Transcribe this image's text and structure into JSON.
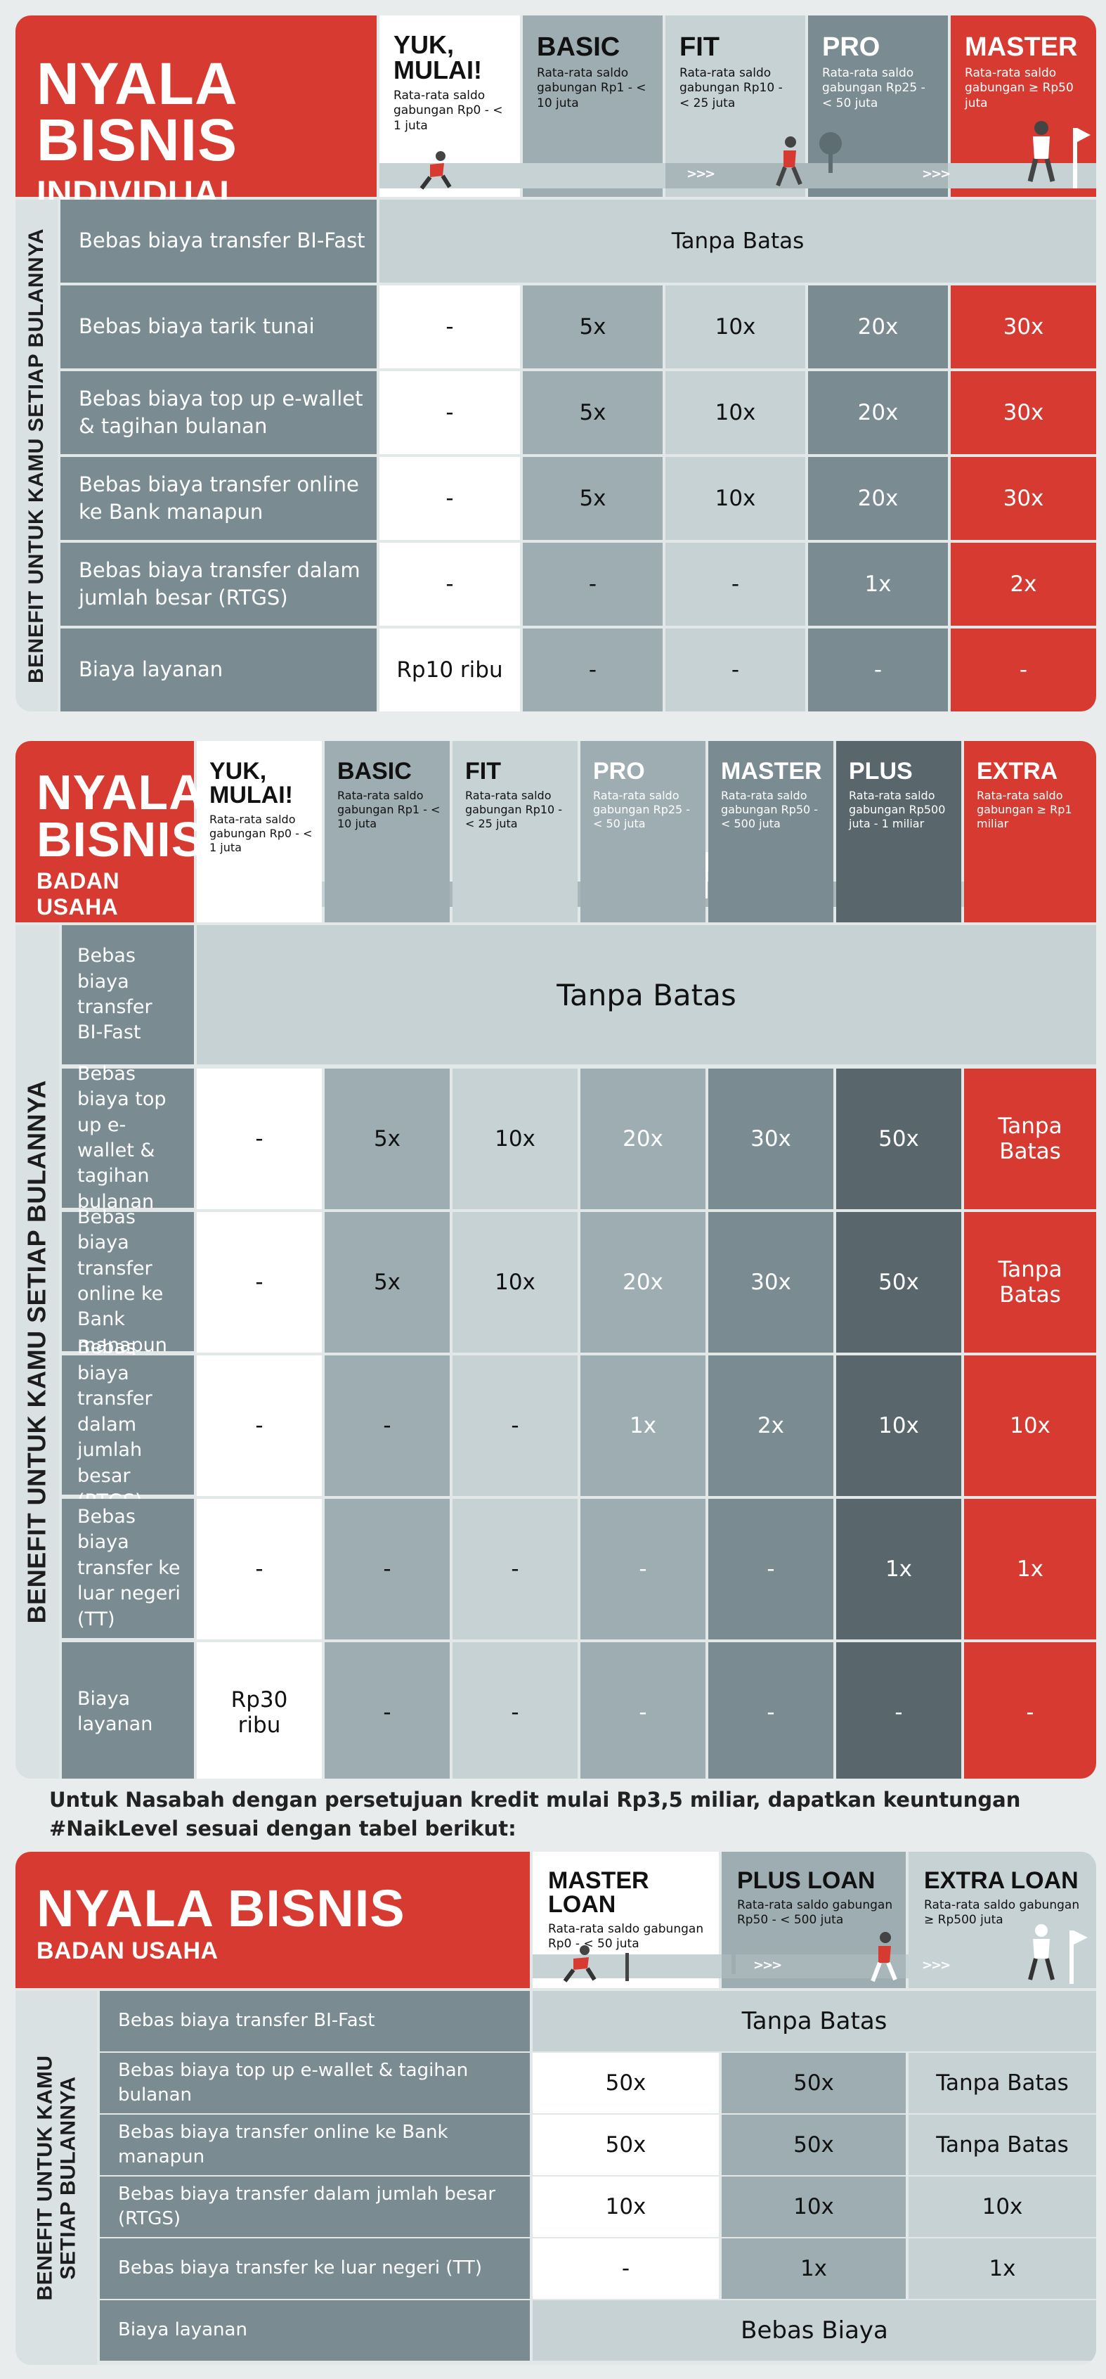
{
  "colors": {
    "red": "#d63a31",
    "white": "#ffffff",
    "dark": "#59676c",
    "mid": "#7a8b91",
    "light": "#9eadb2",
    "pale": "#c7d2d4"
  },
  "individual": {
    "title_line1": "NYALA BISNIS",
    "title_line2": "INDIVIDUAL",
    "side_label": "BENEFIT UNTUK KAMU SETIAP BULANNYA",
    "tiers": [
      {
        "name": "YUK, MULAI!",
        "desc": "Rata-rata saldo gabungan Rp0 - < 1 juta"
      },
      {
        "name": "BASIC",
        "desc": "Rata-rata saldo gabungan Rp1 - < 10 juta"
      },
      {
        "name": "FIT",
        "desc": "Rata-rata saldo gabungan Rp10 - < 25 juta"
      },
      {
        "name": "PRO",
        "desc": "Rata-rata saldo gabungan Rp25 - < 50 juta"
      },
      {
        "name": "MASTER",
        "desc": "Rata-rata saldo gabungan ≥ Rp50 juta"
      }
    ],
    "rows": [
      {
        "label": "Bebas biaya transfer BI-Fast",
        "merged": "Tanpa Batas"
      },
      {
        "label": "Bebas biaya tarik tunai",
        "values": [
          "-",
          "5x",
          "10x",
          "20x",
          "30x"
        ]
      },
      {
        "label": "Bebas biaya top up e-wallet & tagihan bulanan",
        "values": [
          "-",
          "5x",
          "10x",
          "20x",
          "30x"
        ]
      },
      {
        "label": "Bebas biaya transfer online ke Bank manapun",
        "values": [
          "-",
          "5x",
          "10x",
          "20x",
          "30x"
        ]
      },
      {
        "label": "Bebas biaya transfer dalam jumlah besar (RTGS)",
        "values": [
          "-",
          "-",
          "-",
          "1x",
          "2x"
        ]
      },
      {
        "label": "Biaya layanan",
        "values": [
          "Rp10 ribu",
          "-",
          "-",
          "-",
          "-"
        ]
      }
    ]
  },
  "badan": {
    "title_line1": "NYALA",
    "title_line1b": "BISNIS",
    "title_line2": "BADAN USAHA",
    "side_label": "BENEFIT UNTUK KAMU SETIAP BULANNYA",
    "tiers": [
      {
        "name": "YUK, MULAI!",
        "desc": "Rata-rata saldo gabungan Rp0 - < 1 juta"
      },
      {
        "name": "BASIC",
        "desc": "Rata-rata saldo gabungan Rp1 - < 10 juta"
      },
      {
        "name": "FIT",
        "desc": "Rata-rata saldo gabungan Rp10 - < 25 juta"
      },
      {
        "name": "PRO",
        "desc": "Rata-rata saldo gabungan Rp25 - < 50 juta"
      },
      {
        "name": "MASTER",
        "desc": "Rata-rata saldo gabungan Rp50 - < 500 juta"
      },
      {
        "name": "PLUS",
        "desc": "Rata-rata saldo gabungan Rp500 juta - 1 miliar"
      },
      {
        "name": "EXTRA",
        "desc": "Rata-rata saldo gabungan ≥ Rp1 miliar"
      }
    ],
    "rows": [
      {
        "label": "Bebas biaya transfer BI-Fast",
        "merged": "Tanpa Batas"
      },
      {
        "label": "Bebas biaya top up e-wallet & tagihan bulanan",
        "values": [
          "-",
          "5x",
          "10x",
          "20x",
          "30x",
          "50x",
          "Tanpa Batas"
        ]
      },
      {
        "label": "Bebas biaya transfer online ke Bank manapun",
        "values": [
          "-",
          "5x",
          "10x",
          "20x",
          "30x",
          "50x",
          "Tanpa Batas"
        ]
      },
      {
        "label": "Bebas biaya transfer dalam jumlah besar (RTGS)",
        "values": [
          "-",
          "-",
          "-",
          "1x",
          "2x",
          "10x",
          "10x"
        ]
      },
      {
        "label": "Bebas biaya transfer ke luar negeri (TT)",
        "values": [
          "-",
          "-",
          "-",
          "-",
          "-",
          "1x",
          "1x"
        ]
      },
      {
        "label": "Biaya layanan",
        "values": [
          "Rp30 ribu",
          "-",
          "-",
          "-",
          "-",
          "-",
          "-"
        ]
      }
    ]
  },
  "note": "Untuk Nasabah dengan persetujuan kredit mulai Rp3,5 miliar, dapatkan keuntungan #NaikLevel sesuai dengan tabel berikut:",
  "loan": {
    "title_line1": "NYALA BISNIS",
    "title_line2": "BADAN USAHA",
    "side_label_1": "BENEFIT UNTUK KAMU",
    "side_label_2": "SETIAP BULANNYA",
    "tiers": [
      {
        "name": "MASTER LOAN",
        "desc": "Rata-rata saldo gabungan Rp0 - < 50 juta"
      },
      {
        "name": "PLUS LOAN",
        "desc": "Rata-rata saldo gabungan Rp50 - < 500 juta"
      },
      {
        "name": "EXTRA LOAN",
        "desc": "Rata-rata saldo gabungan ≥ Rp500 juta"
      }
    ],
    "rows": [
      {
        "label": "Bebas biaya transfer BI-Fast",
        "merged": "Tanpa Batas"
      },
      {
        "label": "Bebas biaya top up e-wallet & tagihan bulanan",
        "values": [
          "50x",
          "50x",
          "Tanpa Batas"
        ]
      },
      {
        "label": "Bebas biaya transfer online ke Bank manapun",
        "values": [
          "50x",
          "50x",
          "Tanpa Batas"
        ]
      },
      {
        "label": "Bebas biaya transfer dalam jumlah besar (RTGS)",
        "values": [
          "10x",
          "10x",
          "10x"
        ]
      },
      {
        "label": "Bebas biaya transfer ke luar negeri (TT)",
        "values": [
          "-",
          "1x",
          "1x"
        ]
      },
      {
        "label": "Biaya layanan",
        "merged": "Bebas Biaya"
      }
    ]
  }
}
